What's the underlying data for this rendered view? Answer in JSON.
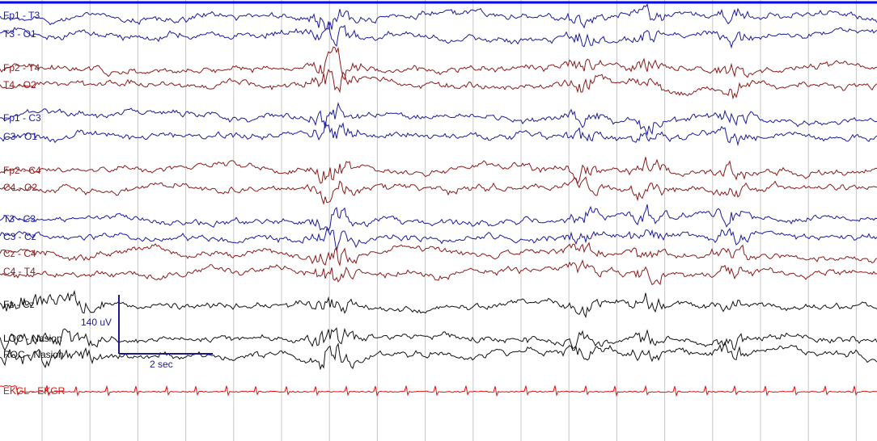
{
  "channels": [
    {
      "label": "Fp1 - T3",
      "color": "#1a1aa0"
    },
    {
      "label": "T3 - O1",
      "color": "#1a1aa0"
    },
    {
      "label": "Fp2 - T4",
      "color": "#8b1a1a"
    },
    {
      "label": "T4 - O2",
      "color": "#8b1a1a"
    },
    {
      "label": "Fp1 - C3",
      "color": "#1a1aa0"
    },
    {
      "label": "C3 - O1",
      "color": "#1a1aa0"
    },
    {
      "label": "Fp2 - C4",
      "color": "#8b1a1a"
    },
    {
      "label": "C4 - O2",
      "color": "#8b1a1a"
    },
    {
      "label": "T3 - C3",
      "color": "#1a1aa0"
    },
    {
      "label": "C3 - Cz",
      "color": "#1a1aa0"
    },
    {
      "label": "Cz - C4",
      "color": "#8b1a1a"
    },
    {
      "label": "C4 - T4",
      "color": "#8b1a1a"
    },
    {
      "label": "Fz - Cz",
      "color": "#111111"
    },
    {
      "label": "LOC - Nasion",
      "color": "#111111"
    },
    {
      "label": "ROC - Nasion",
      "color": "#111111"
    },
    {
      "label": "EKGL - EKGR",
      "color": "#e01010"
    }
  ],
  "scale": {
    "amplitude": "140 uV",
    "time": "2 sec"
  }
}
